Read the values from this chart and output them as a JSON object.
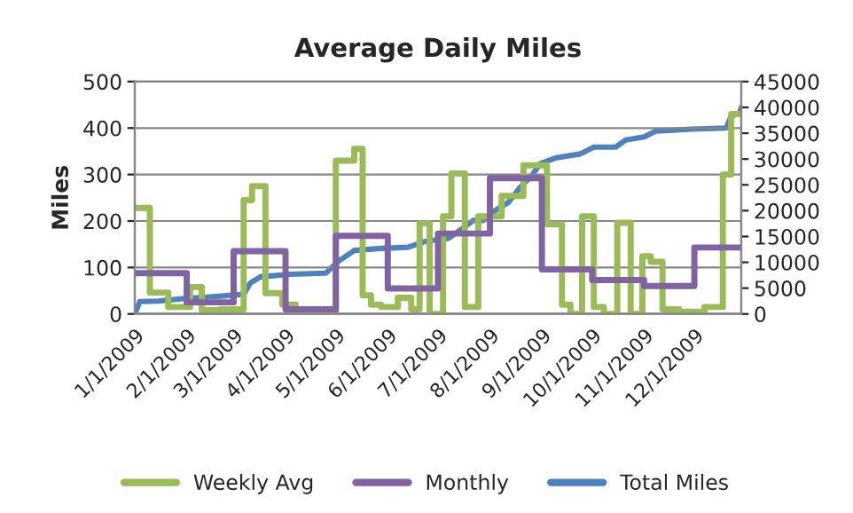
{
  "chart_data": {
    "type": "line",
    "title": "Average Daily Miles",
    "ylabel": "Miles",
    "xlim": [
      "2009-01-01",
      "2009-12-29"
    ],
    "xticks": [
      {
        "value": "2009-01-01",
        "label": "1/1/2009"
      },
      {
        "value": "2009-02-01",
        "label": "2/1/2009"
      },
      {
        "value": "2009-03-01",
        "label": "3/1/2009"
      },
      {
        "value": "2009-04-01",
        "label": "4/1/2009"
      },
      {
        "value": "2009-05-01",
        "label": "5/1/2009"
      },
      {
        "value": "2009-06-01",
        "label": "6/1/2009"
      },
      {
        "value": "2009-07-01",
        "label": "7/1/2009"
      },
      {
        "value": "2009-08-01",
        "label": "8/1/2009"
      },
      {
        "value": "2009-09-01",
        "label": "9/1/2009"
      },
      {
        "value": "2009-10-01",
        "label": "10/1/2009"
      },
      {
        "value": "2009-11-01",
        "label": "11/1/2009"
      },
      {
        "value": "2009-12-01",
        "label": "12/1/2009"
      }
    ],
    "ylim": [
      0,
      500
    ],
    "yticks": [
      0,
      100,
      200,
      300,
      400,
      500
    ],
    "y2lim": [
      0,
      45000
    ],
    "y2ticks": [
      0,
      5000,
      10000,
      15000,
      20000,
      25000,
      30000,
      35000,
      40000,
      45000
    ],
    "grid": "y",
    "legend": "bottom",
    "series": [
      {
        "name": "Weekly Avg",
        "type": "step",
        "color": "#9bbb59",
        "x": [
          "2009-01-01",
          "2009-01-10",
          "2009-01-21",
          "2009-02-03",
          "2009-02-10",
          "2009-02-21",
          "2009-03-07",
          "2009-03-12",
          "2009-03-20",
          "2009-03-30",
          "2009-04-07",
          "2009-05-01",
          "2009-05-12",
          "2009-05-17",
          "2009-05-22",
          "2009-05-28",
          "2009-06-07",
          "2009-06-15",
          "2009-06-20",
          "2009-06-26",
          "2009-07-04",
          "2009-07-09",
          "2009-07-17",
          "2009-07-25",
          "2009-08-08",
          "2009-08-21",
          "2009-09-04",
          "2009-09-13",
          "2009-09-18",
          "2009-09-25",
          "2009-10-02",
          "2009-10-08",
          "2009-10-16",
          "2009-10-24",
          "2009-10-31",
          "2009-11-05",
          "2009-11-12",
          "2009-11-22",
          "2009-12-07",
          "2009-12-18",
          "2009-12-23",
          "2009-12-29"
        ],
        "values": [
          228,
          46,
          15,
          58,
          8,
          10,
          245,
          275,
          45,
          20,
          2,
          330,
          355,
          40,
          20,
          15,
          35,
          10,
          195,
          0,
          210,
          302,
          15,
          210,
          254,
          320,
          193,
          20,
          0,
          210,
          15,
          0,
          196,
          0,
          124,
          112,
          10,
          5,
          15,
          300,
          430,
          430
        ]
      },
      {
        "name": "Monthly",
        "type": "step",
        "color": "#8064a2",
        "x": [
          "2009-01-01",
          "2009-02-01",
          "2009-03-01",
          "2009-04-01",
          "2009-05-01",
          "2009-06-01",
          "2009-07-01",
          "2009-08-01",
          "2009-09-01",
          "2009-10-01",
          "2009-11-01",
          "2009-12-01",
          "2009-12-29"
        ],
        "values": [
          88,
          25,
          135,
          10,
          168,
          55,
          173,
          292,
          96,
          73,
          60,
          143,
          143
        ]
      },
      {
        "name": "Total Miles",
        "axis": "y2",
        "color": "#4f81bd",
        "x": [
          "2009-01-01",
          "2009-01-04",
          "2009-01-15",
          "2009-01-31",
          "2009-02-15",
          "2009-03-07",
          "2009-03-11",
          "2009-03-17",
          "2009-04-04",
          "2009-04-25",
          "2009-05-03",
          "2009-05-12",
          "2009-05-28",
          "2009-06-13",
          "2009-06-24",
          "2009-07-07",
          "2009-07-15",
          "2009-07-22",
          "2009-07-28",
          "2009-08-05",
          "2009-08-12",
          "2009-08-19",
          "2009-08-26",
          "2009-08-31",
          "2009-09-09",
          "2009-09-24",
          "2009-10-02",
          "2009-10-15",
          "2009-10-21",
          "2009-11-01",
          "2009-11-08",
          "2009-11-29",
          "2009-12-20",
          "2009-12-23",
          "2009-12-28",
          "2009-12-29"
        ],
        "values": [
          0,
          2400,
          2500,
          3000,
          3300,
          3800,
          6000,
          7200,
          7700,
          7900,
          10300,
          12300,
          12700,
          12900,
          14100,
          14600,
          16400,
          18100,
          18100,
          20200,
          21600,
          24500,
          26800,
          29100,
          30200,
          31000,
          32300,
          32300,
          33700,
          34300,
          35400,
          35800,
          36000,
          38300,
          38900,
          40000
        ]
      }
    ]
  }
}
